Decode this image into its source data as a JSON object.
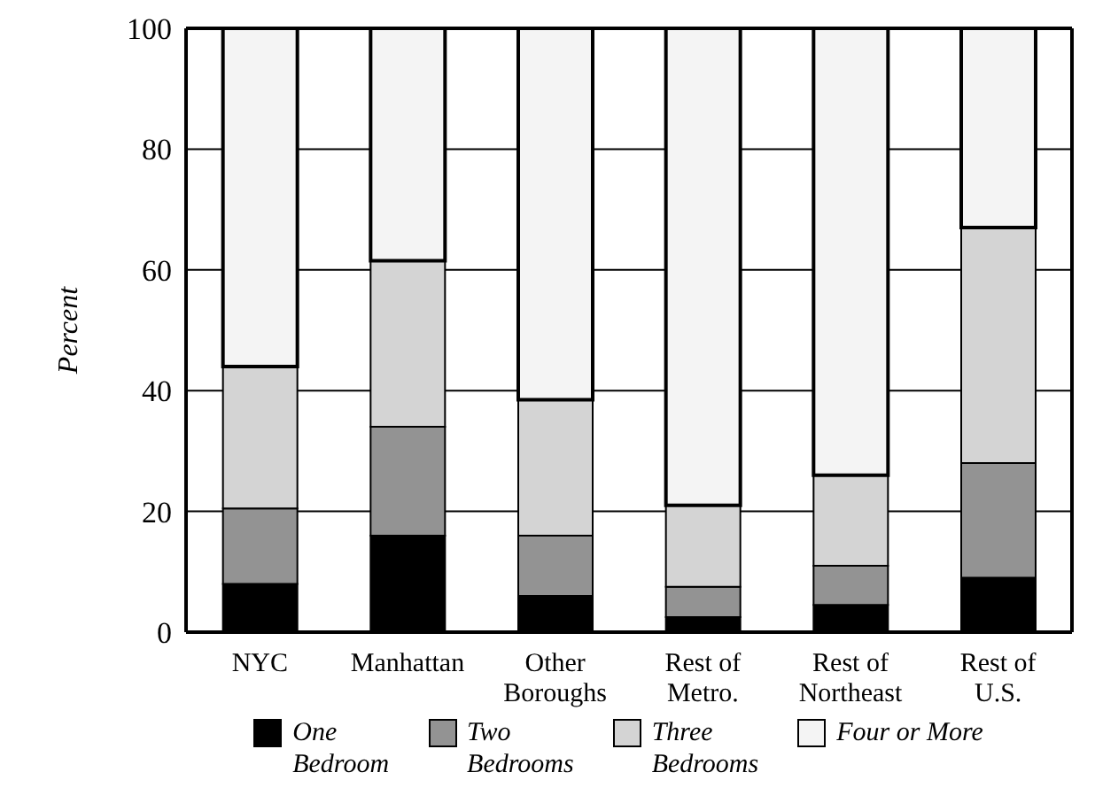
{
  "chart_data": {
    "type": "bar",
    "stacked": true,
    "ylabel": "Percent",
    "categories": [
      "NYC",
      "Manhattan",
      "Other Boroughs",
      "Rest of Metro.",
      "Rest of Northeast",
      "Rest of U.S."
    ],
    "series": [
      {
        "name": "One Bedroom",
        "color": "#000000",
        "values": [
          8,
          16,
          6,
          2.5,
          4.5,
          9
        ]
      },
      {
        "name": "Two Bedrooms",
        "color": "#939393",
        "values": [
          12.5,
          18,
          10,
          5,
          6.5,
          19
        ]
      },
      {
        "name": "Three Bedrooms",
        "color": "#d4d4d4",
        "values": [
          23.5,
          27.5,
          22.5,
          13.5,
          15,
          39
        ]
      },
      {
        "name": "Four or More",
        "color": "#f4f4f4",
        "values": [
          56,
          38.5,
          61.5,
          79,
          74,
          33
        ]
      }
    ],
    "ylim": [
      0,
      100
    ],
    "yticks": [
      0,
      20,
      40,
      60,
      80,
      100
    ],
    "grid": "y",
    "legend": "bottom"
  }
}
